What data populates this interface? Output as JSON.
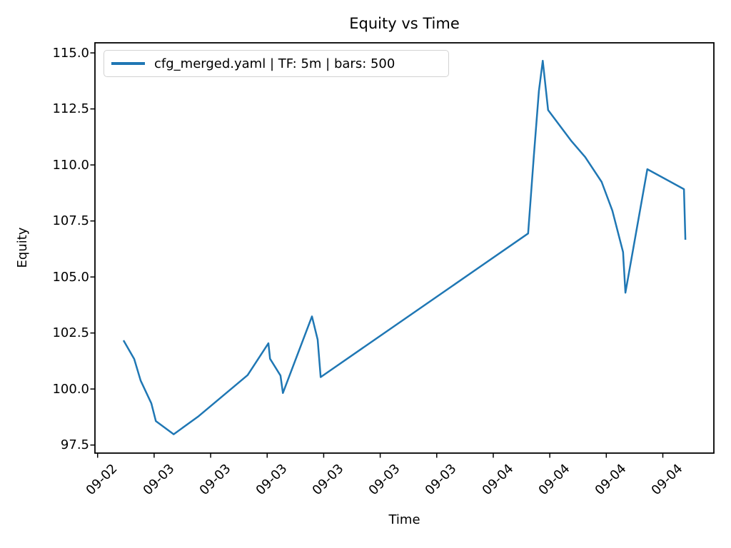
{
  "chart_data": {
    "type": "line",
    "title": "Equity vs Time",
    "xlabel": "Time",
    "ylabel": "Equity",
    "grid": false,
    "legend_position": "upper left",
    "line_color": "#1f77b4",
    "axis_color": "#000000",
    "xlim": [
      -0.047,
      10.903
    ],
    "ylim": [
      97.14,
      115.45
    ],
    "x_ticks": {
      "positions": [
        0,
        1,
        2,
        3,
        4,
        5,
        6,
        7,
        8,
        9,
        10
      ],
      "labels": [
        "09-02",
        "09-03",
        "09-03",
        "09-03",
        "09-03",
        "09-03",
        "09-03",
        "09-04",
        "09-04",
        "09-04",
        "09-04"
      ],
      "rotation_deg": 45
    },
    "y_ticks": {
      "values": [
        97.5,
        100.0,
        102.5,
        105.0,
        107.5,
        110.0,
        112.5,
        115.0
      ],
      "labels": [
        "97.5",
        "100.0",
        "102.5",
        "105.0",
        "107.5",
        "110.0",
        "112.5",
        "115.0"
      ]
    },
    "series": [
      {
        "name": "cfg_merged.yaml | TF: 5m | bars: 500",
        "color": "#1f77b4",
        "points": [
          [
            0.458,
            102.17
          ],
          [
            0.648,
            101.34
          ],
          [
            0.761,
            100.38
          ],
          [
            0.951,
            99.36
          ],
          [
            1.03,
            98.57
          ],
          [
            1.346,
            97.98
          ],
          [
            1.788,
            98.79
          ],
          [
            2.655,
            100.62
          ],
          [
            3.022,
            102.04
          ],
          [
            3.051,
            101.35
          ],
          [
            3.236,
            100.6
          ],
          [
            3.278,
            99.82
          ],
          [
            3.792,
            103.24
          ],
          [
            3.893,
            102.2
          ],
          [
            3.947,
            100.53
          ],
          [
            7.617,
            106.94
          ],
          [
            7.718,
            110.4
          ],
          [
            7.807,
            113.3
          ],
          [
            7.876,
            114.65
          ],
          [
            7.971,
            112.45
          ],
          [
            8.122,
            111.94
          ],
          [
            8.375,
            111.09
          ],
          [
            8.627,
            110.35
          ],
          [
            8.918,
            109.24
          ],
          [
            9.107,
            107.96
          ],
          [
            9.297,
            106.11
          ],
          [
            9.338,
            104.3
          ],
          [
            9.726,
            109.81
          ],
          [
            10.374,
            108.92
          ],
          [
            10.399,
            106.66
          ]
        ]
      }
    ]
  }
}
